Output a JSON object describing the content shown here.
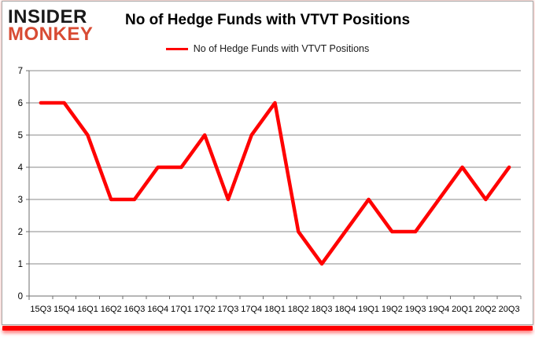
{
  "brand": {
    "line1": "INSIDER",
    "line2": "MONKEY",
    "line1_color": "#191919",
    "line2_color": "#d84b33"
  },
  "header": {
    "title": "No of Hedge Funds with VTVT Positions"
  },
  "legend": {
    "label": "No of Hedge Funds with VTVT Positions",
    "swatch_color": "#ff0000"
  },
  "colors": {
    "series_line": "#ff0000",
    "grid": "#8a8a8a",
    "axis": "#6d6d6d",
    "tick_label": "#000000",
    "accent_bar": "#fe0000"
  },
  "chart_data": {
    "type": "line",
    "title": "No of Hedge Funds with VTVT Positions",
    "categories": [
      "15Q3",
      "15Q4",
      "16Q1",
      "16Q2",
      "16Q3",
      "16Q4",
      "17Q1",
      "17Q2",
      "17Q3",
      "17Q4",
      "18Q1",
      "18Q2",
      "18Q3",
      "18Q4",
      "19Q1",
      "19Q2",
      "19Q3",
      "19Q4",
      "20Q1",
      "20Q2",
      "20Q3"
    ],
    "series": [
      {
        "name": "No of Hedge Funds with VTVT Positions",
        "color": "#ff0000",
        "values": [
          6,
          6,
          5,
          3,
          3,
          4,
          4,
          5,
          3,
          5,
          6,
          2,
          1,
          2,
          3,
          2,
          2,
          3,
          4,
          3,
          4
        ]
      }
    ],
    "xlabel": "",
    "ylabel": "",
    "ylim": [
      0,
      7
    ],
    "yticks": [
      0,
      1,
      2,
      3,
      4,
      5,
      6,
      7
    ],
    "grid": true,
    "legend_position": "top"
  }
}
